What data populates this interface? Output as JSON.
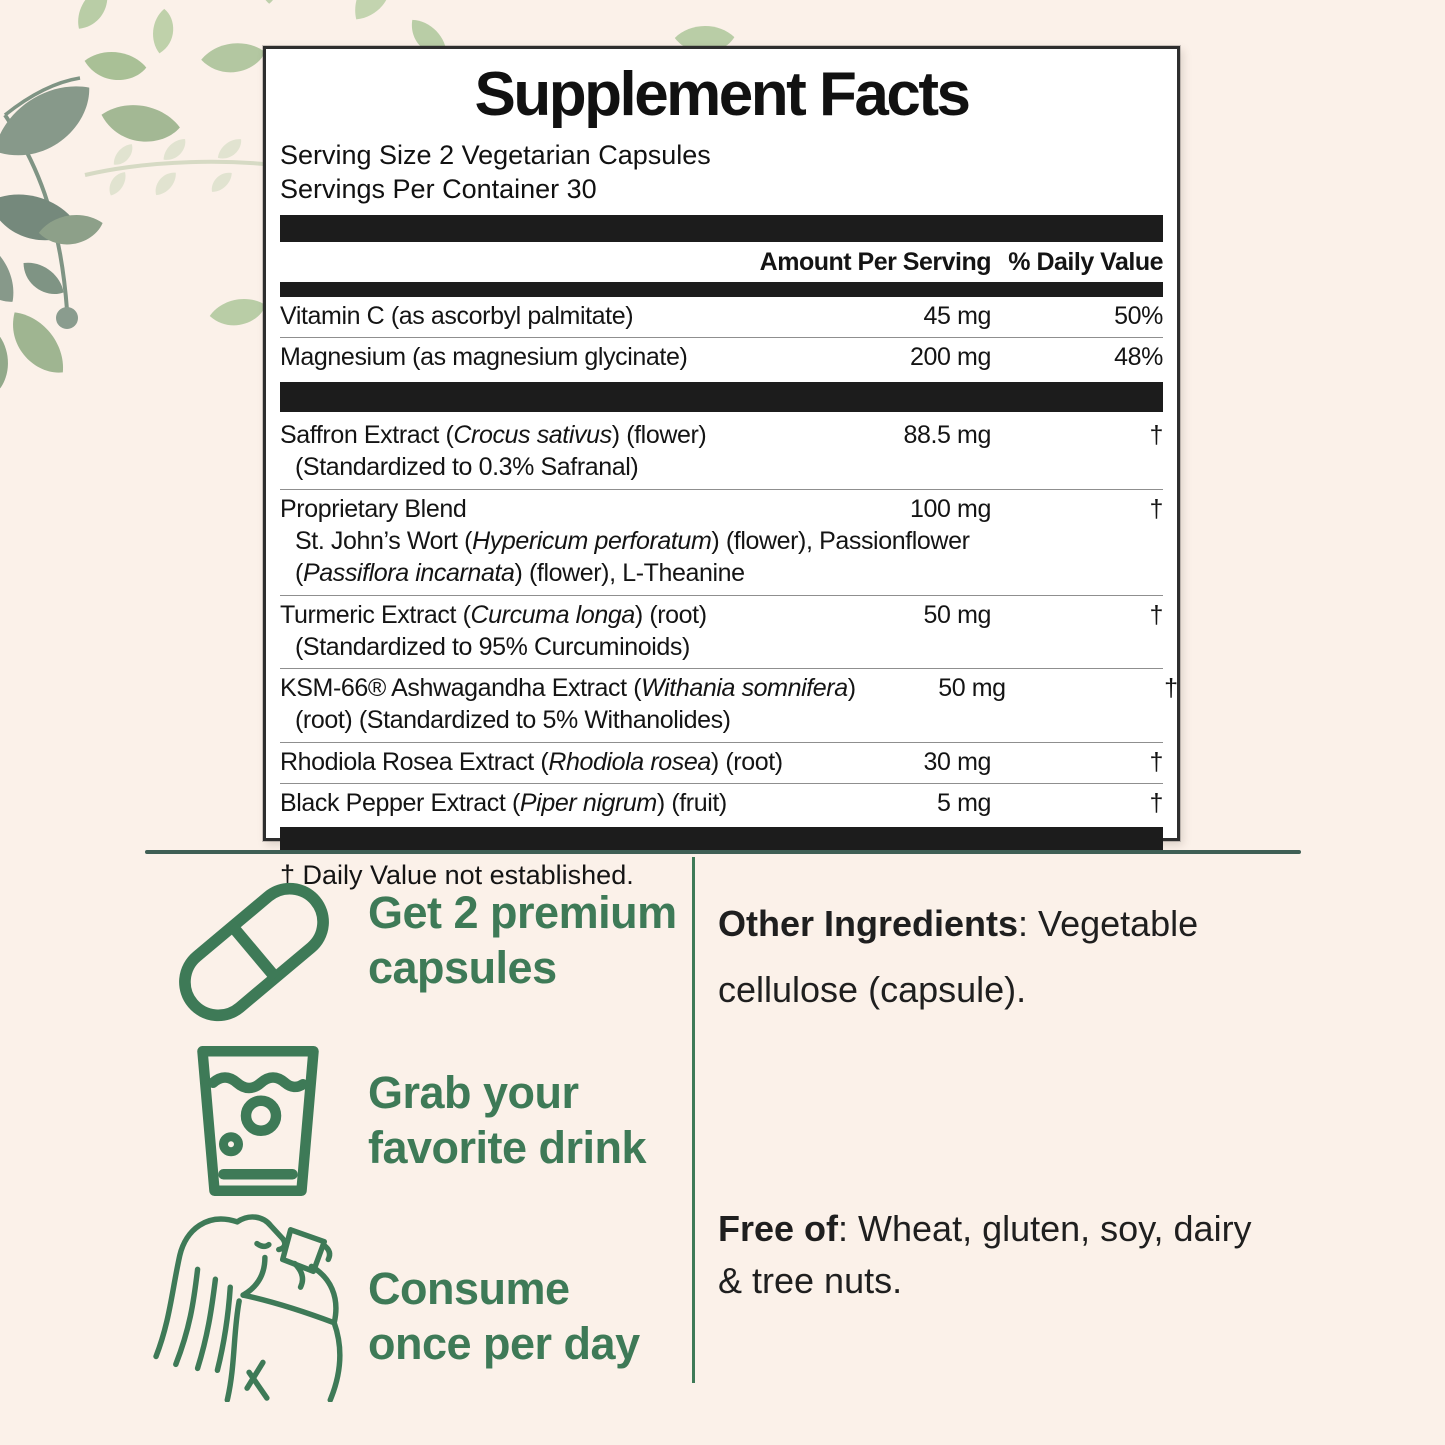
{
  "colors": {
    "page_background": "#fbf1e9",
    "panel_background": "#ffffff",
    "ink": "#111111",
    "accent_green": "#3e7a57",
    "divider_green": "#3f5f55",
    "bar_black": "#1c1c1c"
  },
  "panel": {
    "title": "Supplement Facts",
    "serving_size": "Serving Size 2 Vegetarian Capsules",
    "servings_per_container": "Servings Per Container 30",
    "col_amount": "Amount Per Serving",
    "col_dv": "% Daily Value",
    "footnote": "† Daily Value not established.",
    "items": [
      {
        "type": "row",
        "name": [
          {
            "t": "Vitamin C (as ascorbyl palmitate)"
          }
        ],
        "amount": "45 mg",
        "dv": "50%"
      },
      {
        "type": "row",
        "name": [
          {
            "t": "Magnesium (as magnesium glycinate)"
          }
        ],
        "amount": "200 mg",
        "dv": "48%"
      },
      {
        "type": "bar"
      },
      {
        "type": "row",
        "name": [
          {
            "t": "Saffron Extract ("
          },
          {
            "t": "Crocus sativus",
            "i": true
          },
          {
            "t": ") (flower)"
          }
        ],
        "sub": [
          [
            {
              "t": "(Standardized to 0.3% Safranal)"
            }
          ]
        ],
        "amount": "88.5 mg",
        "dv": "†"
      },
      {
        "type": "row",
        "name": [
          {
            "t": "Proprietary Blend"
          }
        ],
        "sub": [
          [
            {
              "t": "St. John’s Wort ("
            },
            {
              "t": "Hypericum perforatum",
              "i": true
            },
            {
              "t": ") (flower), Passionflower"
            }
          ],
          [
            {
              "t": "("
            },
            {
              "t": "Passiflora incarnata",
              "i": true
            },
            {
              "t": ") (flower), L-Theanine"
            }
          ]
        ],
        "amount": "100 mg",
        "dv": "†"
      },
      {
        "type": "row",
        "name": [
          {
            "t": "Turmeric Extract ("
          },
          {
            "t": "Curcuma longa",
            "i": true
          },
          {
            "t": ") (root)"
          }
        ],
        "sub": [
          [
            {
              "t": "(Standardized to 95% Curcuminoids)"
            }
          ]
        ],
        "amount": "50 mg",
        "dv": "†"
      },
      {
        "type": "row",
        "name": [
          {
            "t": "KSM-66® Ashwagandha Extract ("
          },
          {
            "t": "Withania somnifera",
            "i": true
          },
          {
            "t": ")"
          }
        ],
        "sub": [
          [
            {
              "t": "(root) (Standardized to 5% Withanolides)"
            }
          ]
        ],
        "amount": "50 mg",
        "dv": "†"
      },
      {
        "type": "row",
        "name": [
          {
            "t": "Rhodiola Rosea Extract ("
          },
          {
            "t": "Rhodiola rosea",
            "i": true
          },
          {
            "t": ") (root)"
          }
        ],
        "amount": "30 mg",
        "dv": "†"
      },
      {
        "type": "row",
        "name": [
          {
            "t": "Black Pepper Extract ("
          },
          {
            "t": "Piper nigrum",
            "i": true
          },
          {
            "t": ") (fruit)"
          }
        ],
        "amount": "5 mg",
        "dv": "†"
      }
    ]
  },
  "steps": [
    {
      "icon": "capsule-icon",
      "label": "Get 2 premium\ncapsules"
    },
    {
      "icon": "glass-icon",
      "label": "Grab your\nfavorite drink"
    },
    {
      "icon": "woman-drinking-icon",
      "label": "Consume\nonce per day"
    }
  ],
  "info": {
    "other_ingredients_label": "Other Ingredients",
    "other_ingredients_text": ": Vegetable cellulose (capsule).",
    "free_of_label": "Free of",
    "free_of_text": ": Wheat, gluten, soy, dairy & tree nuts."
  }
}
